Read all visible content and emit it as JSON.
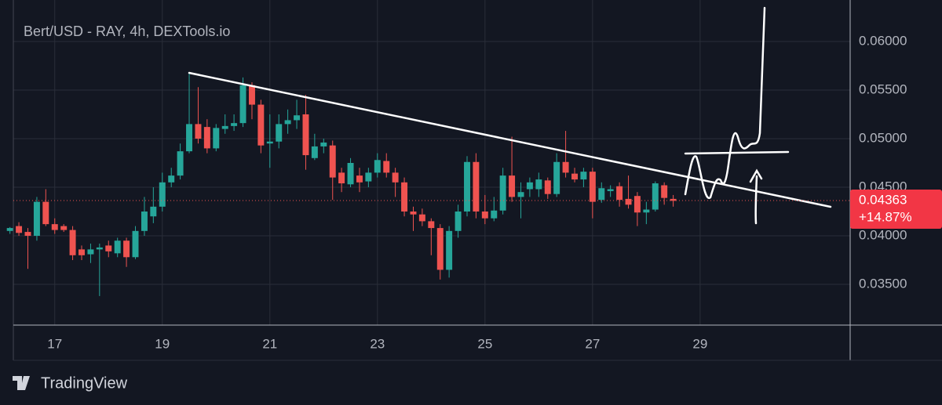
{
  "chart_data": {
    "type": "candlestick",
    "title": "Bert/USD - RAY, 4h, DEXTools.io",
    "footer": "TradingView",
    "up_color": "#26a69a",
    "down_color": "#ef5350",
    "x": [
      16.167,
      16.333,
      16.5,
      16.667,
      16.833,
      17,
      17.167,
      17.333,
      17.5,
      17.667,
      17.833,
      18,
      18.167,
      18.333,
      18.5,
      18.667,
      18.833,
      19,
      19.167,
      19.333,
      19.5,
      19.667,
      19.833,
      20,
      20.167,
      20.333,
      20.5,
      20.667,
      20.833,
      21,
      21.167,
      21.333,
      21.5,
      21.667,
      21.833,
      22,
      22.167,
      22.333,
      22.5,
      22.667,
      22.833,
      23,
      23.167,
      23.333,
      23.5,
      23.667,
      23.833,
      24,
      24.167,
      24.333,
      24.5,
      24.667,
      24.833,
      25,
      25.167,
      25.333,
      25.5,
      25.667,
      25.833,
      26,
      26.167,
      26.333,
      26.5,
      26.667,
      26.833,
      27,
      27.167,
      27.333,
      27.5,
      27.667,
      27.833,
      28,
      28.167,
      28.333,
      28.5
    ],
    "open": [
      0.0405,
      0.041,
      0.0404,
      0.04,
      0.0435,
      0.0412,
      0.041,
      0.0406,
      0.0386,
      0.0381,
      0.0386,
      0.039,
      0.0382,
      0.0395,
      0.0378,
      0.0405,
      0.042,
      0.043,
      0.0455,
      0.0462,
      0.0487,
      0.0515,
      0.0512,
      0.049,
      0.051,
      0.0513,
      0.0516,
      0.0555,
      0.0535,
      0.0495,
      0.0497,
      0.0515,
      0.0519,
      0.0525,
      0.048,
      0.0492,
      0.0493,
      0.0465,
      0.0453,
      0.0462,
      0.0456,
      0.0465,
      0.0477,
      0.0465,
      0.0455,
      0.0425,
      0.0422,
      0.0415,
      0.0408,
      0.0365,
      0.0405,
      0.0425,
      0.0476,
      0.0425,
      0.0418,
      0.0426,
      0.0462,
      0.044,
      0.0448,
      0.0448,
      0.0457,
      0.0443,
      0.0476,
      0.0464,
      0.0458,
      0.0466,
      0.0437,
      0.0446,
      0.0451,
      0.0438,
      0.0441,
      0.0424,
      0.0427,
      0.0452,
      0.0438
    ],
    "high": [
      0.0409,
      0.0414,
      0.0408,
      0.044,
      0.0448,
      0.0418,
      0.0412,
      0.041,
      0.039,
      0.0392,
      0.0392,
      0.0395,
      0.0398,
      0.0398,
      0.041,
      0.044,
      0.045,
      0.0465,
      0.047,
      0.0495,
      0.0567,
      0.0553,
      0.052,
      0.0515,
      0.0525,
      0.0525,
      0.0563,
      0.0558,
      0.054,
      0.0525,
      0.0525,
      0.053,
      0.054,
      0.0545,
      0.0505,
      0.05,
      0.0498,
      0.047,
      0.048,
      0.047,
      0.047,
      0.0485,
      0.0485,
      0.047,
      0.046,
      0.043,
      0.0428,
      0.0418,
      0.0412,
      0.041,
      0.0432,
      0.0482,
      0.0485,
      0.0442,
      0.044,
      0.047,
      0.0502,
      0.0455,
      0.046,
      0.0465,
      0.046,
      0.0485,
      0.0508,
      0.047,
      0.047,
      0.047,
      0.0455,
      0.0452,
      0.0455,
      0.0462,
      0.0445,
      0.0435,
      0.0456,
      0.0455,
      0.0442
    ],
    "low": [
      0.0402,
      0.04,
      0.0366,
      0.0395,
      0.041,
      0.0402,
      0.0404,
      0.0375,
      0.0375,
      0.0372,
      0.0338,
      0.0378,
      0.0378,
      0.0368,
      0.0376,
      0.04,
      0.0413,
      0.0425,
      0.045,
      0.0458,
      0.0485,
      0.0495,
      0.0485,
      0.0487,
      0.0505,
      0.0508,
      0.0512,
      0.052,
      0.0485,
      0.047,
      0.049,
      0.0505,
      0.051,
      0.0468,
      0.0478,
      0.0485,
      0.0437,
      0.0445,
      0.045,
      0.0445,
      0.045,
      0.046,
      0.046,
      0.044,
      0.042,
      0.0405,
      0.041,
      0.038,
      0.0355,
      0.0357,
      0.0398,
      0.042,
      0.0418,
      0.0412,
      0.0415,
      0.0422,
      0.0435,
      0.0418,
      0.044,
      0.044,
      0.0438,
      0.044,
      0.046,
      0.0455,
      0.045,
      0.0418,
      0.0434,
      0.044,
      0.043,
      0.0428,
      0.041,
      0.0412,
      0.0425,
      0.0432,
      0.043
    ],
    "close": [
      0.0408,
      0.0403,
      0.04,
      0.0435,
      0.0412,
      0.0406,
      0.0406,
      0.038,
      0.038,
      0.0386,
      0.0388,
      0.0384,
      0.0395,
      0.0378,
      0.0405,
      0.0425,
      0.043,
      0.0455,
      0.0462,
      0.0487,
      0.0515,
      0.05,
      0.049,
      0.0511,
      0.0513,
      0.0516,
      0.0555,
      0.0535,
      0.0493,
      0.0497,
      0.0515,
      0.0519,
      0.0524,
      0.0483,
      0.0492,
      0.0496,
      0.046,
      0.0454,
      0.0475,
      0.0455,
      0.0465,
      0.0478,
      0.0465,
      0.0455,
      0.0425,
      0.0422,
      0.0415,
      0.0408,
      0.0365,
      0.0405,
      0.0425,
      0.0476,
      0.0425,
      0.0418,
      0.0426,
      0.0462,
      0.044,
      0.0445,
      0.0455,
      0.0458,
      0.0443,
      0.0476,
      0.0465,
      0.0458,
      0.0466,
      0.0435,
      0.0449,
      0.0448,
      0.0437,
      0.0432,
      0.0424,
      0.0427,
      0.0454,
      0.0439,
      0.0436
    ],
    "xlim": [
      16.23,
      31.79
    ],
    "xticks": [
      17,
      19,
      21,
      23,
      25,
      27,
      29
    ],
    "ylim": [
      0.03081,
      0.06427
    ],
    "yticks": [
      {
        "value": 0.035,
        "label": "0.03500"
      },
      {
        "value": 0.04,
        "label": "0.04000"
      },
      {
        "value": 0.045,
        "label": "0.04500"
      },
      {
        "value": 0.05,
        "label": "0.05000"
      },
      {
        "value": 0.055,
        "label": "0.05500"
      },
      {
        "value": 0.06,
        "label": "0.06000"
      }
    ],
    "grid": true,
    "last_price": 0.04363,
    "change": "+14.87%"
  }
}
